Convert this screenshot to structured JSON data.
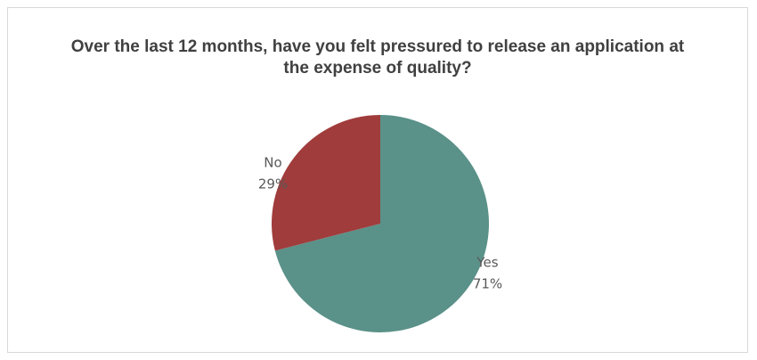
{
  "chart_data": {
    "type": "pie",
    "title": "Over the last 12 months, have you felt pressured to release an application at the expense of quality?",
    "categories": [
      "Yes",
      "No"
    ],
    "values": [
      71,
      29
    ],
    "value_labels": [
      "71%",
      "29%"
    ],
    "colors": [
      "#5a9189",
      "#a03c3c"
    ]
  }
}
